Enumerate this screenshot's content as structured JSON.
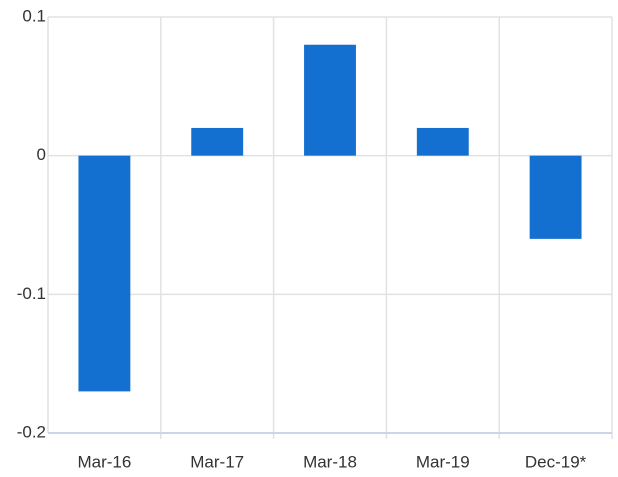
{
  "chart_data": {
    "type": "bar",
    "categories": [
      "Mar-16",
      "Mar-17",
      "Mar-18",
      "Mar-19",
      "Dec-19*"
    ],
    "values": [
      -0.17,
      0.02,
      0.08,
      0.02,
      -0.06
    ],
    "color": "#1470d0",
    "ylim": [
      -0.2,
      0.1
    ],
    "yticks": [
      -0.2,
      -0.1,
      0,
      0.1
    ],
    "grid": true
  }
}
